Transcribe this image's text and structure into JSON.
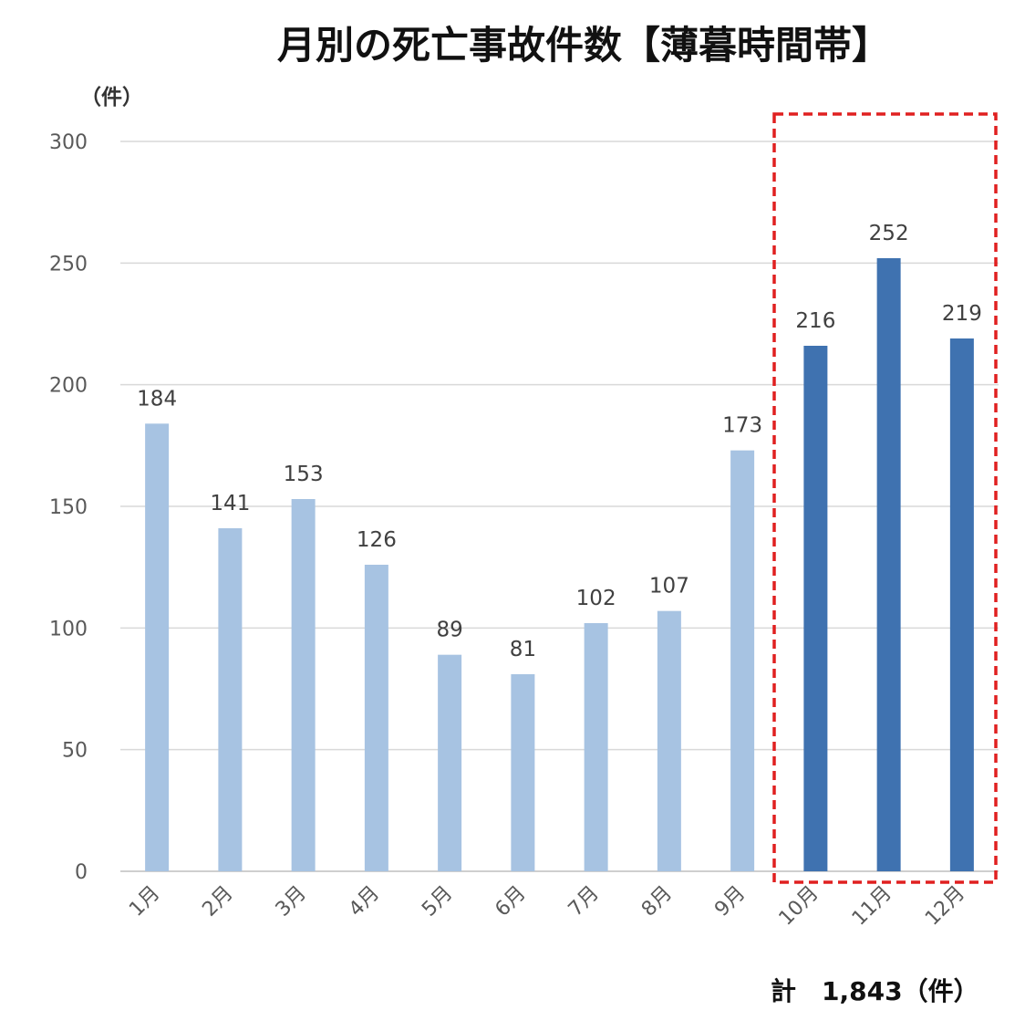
{
  "chart_data": {
    "type": "bar",
    "title": "月別の死亡事故件数【薄暮時間帯】",
    "unit_label": "（件）",
    "xlabel": "",
    "ylabel": "",
    "categories": [
      "1月",
      "2月",
      "3月",
      "4月",
      "5月",
      "6月",
      "7月",
      "8月",
      "9月",
      "10月",
      "11月",
      "12月"
    ],
    "values": [
      184,
      141,
      153,
      126,
      89,
      81,
      102,
      107,
      173,
      216,
      252,
      219
    ],
    "highlighted": [
      false,
      false,
      false,
      false,
      false,
      false,
      false,
      false,
      false,
      true,
      true,
      true
    ],
    "ylim": [
      0,
      300
    ],
    "yticks": [
      0,
      50,
      100,
      150,
      200,
      250,
      300
    ],
    "grid": true,
    "data_labels": true,
    "colors": {
      "normal_bar": "#a7c3e2",
      "highlight_bar": "#3f72b0",
      "highlight_box": "#e02020",
      "grid": "#d9d9d9"
    },
    "total_label": "計　1,843（件）"
  }
}
